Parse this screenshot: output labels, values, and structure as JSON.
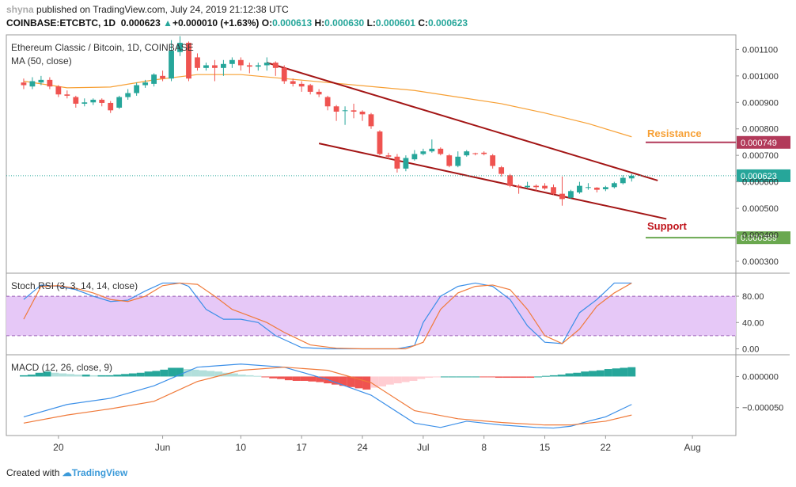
{
  "header": {
    "brand": "shyna",
    "published": " published on TradingView.com, July 24, 2019 21:12:38 UTC",
    "symbol": "COINBASE:ETCBTC, 1D",
    "last": "0.000623",
    "change_arrow": "▲",
    "change": "+0.000010 (+1.63%)",
    "o_label": "O:",
    "o": "0.000613",
    "h_label": "H:",
    "h": "0.000630",
    "l_label": "L:",
    "l": "0.000601",
    "c_label": "C:",
    "c": "0.000623"
  },
  "footer": {
    "created_with": "Created with",
    "brand": "TradingView"
  },
  "colors": {
    "up": "#26a69a",
    "down": "#ef5350",
    "ma": "#f7a035",
    "channel": "#a31515",
    "resistance_label": "#f7a035",
    "resistance_line": "#b23a5a",
    "support_label": "#c0151c",
    "support_line": "#6aa84f",
    "stoch_k": "#3b8fe8",
    "stoch_d": "#f07a3a",
    "stoch_band": "#e6c8f7",
    "current_price_bg": "#26a69a",
    "resistance_badge": "#b23a5a",
    "support_badge": "#6aa84f"
  },
  "chart_data": [
    {
      "type": "line",
      "title": "Ethereum Classic / Bitcoin, 1D, COINBASE",
      "indicator_label": "MA (50, close)",
      "ylim": [
        0.000255,
        0.001155
      ],
      "y_ticks": [
        0.0003,
        0.0004,
        0.0005,
        0.0006,
        0.0007,
        0.0008,
        0.0009,
        0.001,
        0.0011
      ],
      "y_tick_labels": [
        "0.000300",
        "0.000400",
        "0.000500",
        "0.000600",
        "0.000700",
        "0.000800",
        "0.000900",
        "0.001000",
        "0.001100"
      ],
      "x_ticks": [
        {
          "label": "20",
          "day": -11
        },
        {
          "label": "Jun",
          "day": 1
        },
        {
          "label": "10",
          "day": 10
        },
        {
          "label": "17",
          "day": 17
        },
        {
          "label": "24",
          "day": 24
        },
        {
          "label": "Jul",
          "day": 31
        },
        {
          "label": "8",
          "day": 38
        },
        {
          "label": "15",
          "day": 45
        },
        {
          "label": "22",
          "day": 52
        },
        {
          "label": "Aug",
          "day": 62
        }
      ],
      "candles": [
        {
          "d": -15,
          "o": 0.000975,
          "c": 0.000965,
          "h": 0.00099,
          "l": 0.00095
        },
        {
          "d": -14,
          "o": 0.00096,
          "c": 0.00098,
          "h": 0.000995,
          "l": 0.00095
        },
        {
          "d": -13,
          "o": 0.000975,
          "c": 0.000985,
          "h": 0.001,
          "l": 0.000965
        },
        {
          "d": -12,
          "o": 0.000985,
          "c": 0.00096,
          "h": 0.000995,
          "l": 0.00095
        },
        {
          "d": -11,
          "o": 0.00096,
          "c": 0.00093,
          "h": 0.000965,
          "l": 0.00092
        },
        {
          "d": -10,
          "o": 0.00093,
          "c": 0.000925,
          "h": 0.000945,
          "l": 0.000915
        },
        {
          "d": -9,
          "o": 0.00092,
          "c": 0.000895,
          "h": 0.000925,
          "l": 0.00088
        },
        {
          "d": -8,
          "o": 0.000895,
          "c": 0.0009,
          "h": 0.000915,
          "l": 0.000885
        },
        {
          "d": -7,
          "o": 0.0009,
          "c": 0.00091,
          "h": 0.000915,
          "l": 0.00089
        },
        {
          "d": -6,
          "o": 0.00091,
          "c": 0.000898,
          "h": 0.000915,
          "l": 0.000885
        },
        {
          "d": -5,
          "o": 0.000898,
          "c": 0.00087,
          "h": 0.000905,
          "l": 0.00086
        },
        {
          "d": -4,
          "o": 0.00088,
          "c": 0.00092,
          "h": 0.000925,
          "l": 0.000875
        },
        {
          "d": -3,
          "o": 0.00092,
          "c": 0.000935,
          "h": 0.00095,
          "l": 0.00091
        },
        {
          "d": -2,
          "o": 0.000935,
          "c": 0.000965,
          "h": 0.000975,
          "l": 0.000925
        },
        {
          "d": -1,
          "o": 0.000965,
          "c": 0.000975,
          "h": 0.000985,
          "l": 0.000955
        },
        {
          "d": 0,
          "o": 0.00097,
          "c": 0.001005,
          "h": 0.00101,
          "l": 0.00096
        },
        {
          "d": 1,
          "o": 0.001,
          "c": 0.00099,
          "h": 0.00102,
          "l": 0.00098
        },
        {
          "d": 2,
          "o": 0.00099,
          "c": 0.001095,
          "h": 0.001135,
          "l": 0.00098
        },
        {
          "d": 3,
          "o": 0.00109,
          "c": 0.001125,
          "h": 0.00115,
          "l": 0.001075
        },
        {
          "d": 4,
          "o": 0.001125,
          "c": 0.00099,
          "h": 0.00113,
          "l": 0.00098
        },
        {
          "d": 5,
          "o": 0.00107,
          "c": 0.00103,
          "h": 0.001085,
          "l": 0.00102
        },
        {
          "d": 6,
          "o": 0.00103,
          "c": 0.00104,
          "h": 0.00105,
          "l": 0.00102
        },
        {
          "d": 7,
          "o": 0.00104,
          "c": 0.00103,
          "h": 0.00106,
          "l": 0.00098
        },
        {
          "d": 8,
          "o": 0.00103,
          "c": 0.001045,
          "h": 0.00106,
          "l": 0.001
        },
        {
          "d": 9,
          "o": 0.001045,
          "c": 0.00106,
          "h": 0.00107,
          "l": 0.00103
        },
        {
          "d": 10,
          "o": 0.00106,
          "c": 0.00104,
          "h": 0.00107,
          "l": 0.00102
        },
        {
          "d": 11,
          "o": 0.00104,
          "c": 0.001035,
          "h": 0.00105,
          "l": 0.00101
        },
        {
          "d": 12,
          "o": 0.001035,
          "c": 0.00104,
          "h": 0.00105,
          "l": 0.00102
        },
        {
          "d": 13,
          "o": 0.00104,
          "c": 0.00105,
          "h": 0.00107,
          "l": 0.00102
        },
        {
          "d": 14,
          "o": 0.00105,
          "c": 0.00103,
          "h": 0.001055,
          "l": 0.001
        },
        {
          "d": 15,
          "o": 0.00103,
          "c": 0.00098,
          "h": 0.00104,
          "l": 0.00097
        },
        {
          "d": 16,
          "o": 0.00098,
          "c": 0.00097,
          "h": 0.00099,
          "l": 0.00096
        },
        {
          "d": 17,
          "o": 0.00097,
          "c": 0.00096,
          "h": 0.00098,
          "l": 0.00094
        },
        {
          "d": 18,
          "o": 0.000965,
          "c": 0.00094,
          "h": 0.00097,
          "l": 0.00093
        },
        {
          "d": 19,
          "o": 0.00094,
          "c": 0.00093,
          "h": 0.00095,
          "l": 0.00092
        },
        {
          "d": 20,
          "o": 0.00092,
          "c": 0.000885,
          "h": 0.000925,
          "l": 0.00087
        },
        {
          "d": 21,
          "o": 0.000885,
          "c": 0.000865,
          "h": 0.00089,
          "l": 0.00083
        },
        {
          "d": 22,
          "o": 0.00087,
          "c": 0.00087,
          "h": 0.000885,
          "l": 0.000815
        },
        {
          "d": 23,
          "o": 0.00087,
          "c": 0.000865,
          "h": 0.000895,
          "l": 0.00084
        },
        {
          "d": 24,
          "o": 0.000865,
          "c": 0.000855,
          "h": 0.00087,
          "l": 0.00083
        },
        {
          "d": 25,
          "o": 0.000855,
          "c": 0.00081,
          "h": 0.00086,
          "l": 0.0008
        },
        {
          "d": 26,
          "o": 0.00079,
          "c": 0.000705,
          "h": 0.000795,
          "l": 0.0007
        },
        {
          "d": 27,
          "o": 0.0007,
          "c": 0.000695,
          "h": 0.00071,
          "l": 0.000685
        },
        {
          "d": 28,
          "o": 0.000695,
          "c": 0.00065,
          "h": 0.000705,
          "l": 0.000635
        },
        {
          "d": 29,
          "o": 0.00065,
          "c": 0.00069,
          "h": 0.0007,
          "l": 0.00064
        },
        {
          "d": 30,
          "o": 0.000685,
          "c": 0.000705,
          "h": 0.00072,
          "l": 0.00068
        },
        {
          "d": 31,
          "o": 0.000705,
          "c": 0.000715,
          "h": 0.000725,
          "l": 0.0007
        },
        {
          "d": 32,
          "o": 0.000715,
          "c": 0.000725,
          "h": 0.00076,
          "l": 0.00071
        },
        {
          "d": 33,
          "o": 0.000725,
          "c": 0.000705,
          "h": 0.00073,
          "l": 0.0007
        },
        {
          "d": 34,
          "o": 0.0007,
          "c": 0.00066,
          "h": 0.000705,
          "l": 0.000655
        },
        {
          "d": 35,
          "o": 0.00066,
          "c": 0.000695,
          "h": 0.000715,
          "l": 0.000655
        },
        {
          "d": 36,
          "o": 0.0007,
          "c": 0.000715,
          "h": 0.00072,
          "l": 0.000695
        },
        {
          "d": 37,
          "o": 0.000708,
          "c": 0.000705,
          "h": 0.00071,
          "l": 0.0007
        },
        {
          "d": 38,
          "o": 0.00071,
          "c": 0.000705,
          "h": 0.000715,
          "l": 0.0007
        },
        {
          "d": 39,
          "o": 0.0007,
          "c": 0.00066,
          "h": 0.000705,
          "l": 0.00065
        },
        {
          "d": 40,
          "o": 0.000655,
          "c": 0.00063,
          "h": 0.00066,
          "l": 0.00062
        },
        {
          "d": 41,
          "o": 0.000625,
          "c": 0.000585,
          "h": 0.00063,
          "l": 0.00058
        },
        {
          "d": 42,
          "o": 0.000585,
          "c": 0.00058,
          "h": 0.00059,
          "l": 0.000555
        },
        {
          "d": 43,
          "o": 0.00058,
          "c": 0.000585,
          "h": 0.0006,
          "l": 0.000575
        },
        {
          "d": 44,
          "o": 0.000585,
          "c": 0.00058,
          "h": 0.00059,
          "l": 0.000565
        },
        {
          "d": 45,
          "o": 0.000585,
          "c": 0.000575,
          "h": 0.000595,
          "l": 0.00057
        },
        {
          "d": 46,
          "o": 0.00058,
          "c": 0.000555,
          "h": 0.00059,
          "l": 0.00055
        },
        {
          "d": 47,
          "o": 0.000555,
          "c": 0.000535,
          "h": 0.00062,
          "l": 0.00051
        },
        {
          "d": 48,
          "o": 0.00054,
          "c": 0.000565,
          "h": 0.00057,
          "l": 0.000535
        },
        {
          "d": 49,
          "o": 0.00056,
          "c": 0.000585,
          "h": 0.0006,
          "l": 0.000555
        },
        {
          "d": 50,
          "o": 0.00058,
          "c": 0.00058,
          "h": 0.000595,
          "l": 0.00057
        },
        {
          "d": 51,
          "o": 0.000578,
          "c": 0.00057,
          "h": 0.00058,
          "l": 0.00056
        },
        {
          "d": 52,
          "o": 0.000572,
          "c": 0.00058,
          "h": 0.000585,
          "l": 0.000565
        },
        {
          "d": 53,
          "o": 0.00058,
          "c": 0.000595,
          "h": 0.0006,
          "l": 0.000575
        },
        {
          "d": 54,
          "o": 0.000595,
          "c": 0.000615,
          "h": 0.000625,
          "l": 0.00059
        },
        {
          "d": 55,
          "o": 0.000613,
          "c": 0.000623,
          "h": 0.00063,
          "l": 0.000601
        }
      ],
      "ma50": [
        {
          "d": -15,
          "v": 0.00098
        },
        {
          "d": -10,
          "v": 0.000955
        },
        {
          "d": -5,
          "v": 0.000958
        },
        {
          "d": 0,
          "v": 0.000985
        },
        {
          "d": 5,
          "v": 0.001005
        },
        {
          "d": 10,
          "v": 0.001005
        },
        {
          "d": 15,
          "v": 0.00099
        },
        {
          "d": 20,
          "v": 0.000975
        },
        {
          "d": 25,
          "v": 0.00096
        },
        {
          "d": 30,
          "v": 0.000945
        },
        {
          "d": 35,
          "v": 0.00092
        },
        {
          "d": 40,
          "v": 0.000895
        },
        {
          "d": 45,
          "v": 0.00086
        },
        {
          "d": 50,
          "v": 0.00082
        },
        {
          "d": 55,
          "v": 0.00077
        }
      ],
      "channel_upper": [
        {
          "d": 13,
          "v": 0.00105
        },
        {
          "d": 58,
          "v": 0.000605
        }
      ],
      "channel_lower": [
        {
          "d": 19,
          "v": 0.000745
        },
        {
          "d": 59,
          "v": 0.00046
        }
      ],
      "current_price": 0.000623,
      "current_price_label": "0.000623",
      "resistance": {
        "label": "Resistance",
        "value": 0.000749,
        "value_label": "0.000749"
      },
      "support": {
        "label": "Support",
        "value": 0.000389,
        "value_label": "0.000389"
      }
    },
    {
      "type": "line",
      "indicator_label": "Stoch RSI (3, 3, 14, 14, close)",
      "ylim": [
        -9,
        115
      ],
      "y_ticks": [
        0,
        40,
        80
      ],
      "y_tick_labels": [
        "0.00",
        "40.00",
        "80.00"
      ],
      "band": [
        20,
        80
      ],
      "series": [
        {
          "name": "",
          "x": [
            -15,
            -13,
            -11,
            -9,
            -7,
            -5,
            -3,
            -1,
            1,
            3,
            4,
            6,
            8,
            10,
            12,
            14,
            17,
            20,
            23,
            26,
            28,
            30,
            31,
            33,
            35,
            37,
            39,
            41,
            43,
            45,
            47,
            49,
            51,
            53,
            55
          ],
          "values": [
            75,
            97,
            95,
            90,
            80,
            72,
            74,
            88,
            100,
            100,
            95,
            60,
            45,
            45,
            40,
            20,
            2,
            0,
            0,
            0,
            0,
            5,
            40,
            80,
            95,
            100,
            95,
            75,
            35,
            10,
            8,
            55,
            75,
            100,
            100
          ]
        },
        {
          "name": "",
          "x": [
            -15,
            -13,
            -11,
            -9,
            -7,
            -5,
            -3,
            -1,
            1,
            3,
            5,
            7,
            9,
            11,
            13,
            15,
            18,
            21,
            24,
            27,
            29,
            31,
            33,
            35,
            37,
            39,
            41,
            43,
            45,
            47,
            49,
            51,
            53,
            55
          ],
          "values": [
            45,
            95,
            96,
            92,
            85,
            75,
            72,
            80,
            96,
            100,
            98,
            80,
            60,
            50,
            40,
            25,
            6,
            1,
            0,
            0,
            0,
            10,
            60,
            85,
            95,
            97,
            90,
            60,
            20,
            8,
            30,
            65,
            85,
            100
          ]
        }
      ]
    },
    {
      "type": "bar",
      "indicator_label": "MACD (12, 26, close, 9)",
      "ylim": [
        -9.5e-05,
        3.5e-05
      ],
      "y_ticks": [
        -5e-05,
        0
      ],
      "y_tick_labels": [
        "−0.000050",
        "0.000000"
      ],
      "histogram": [
        2,
        3,
        6,
        8,
        6,
        5,
        4,
        3,
        3,
        2,
        2,
        2,
        3,
        4,
        5,
        6,
        8,
        9,
        11,
        14,
        14,
        12,
        11,
        10,
        9,
        8,
        6,
        5,
        3,
        2,
        1,
        -1,
        -3,
        -4,
        -6,
        -7,
        -7,
        -8,
        -9,
        -11,
        -13,
        -15,
        -17,
        -19,
        -21,
        -18,
        -16,
        -13,
        -11,
        -9,
        -7,
        -4,
        -2,
        -1,
        0,
        0,
        0,
        0,
        0,
        -1,
        -1,
        -2,
        -2,
        -2,
        -2,
        -2,
        0,
        1,
        2,
        3,
        5,
        6,
        8,
        9,
        10,
        12,
        13,
        14,
        15
      ],
      "histogram_start_day": -15,
      "histogram_unit": 1e-06,
      "series": [
        {
          "name": "",
          "x": [
            -15,
            -10,
            -5,
            0,
            5,
            10,
            15,
            20,
            25,
            30,
            33,
            36,
            40,
            44,
            46,
            48,
            50,
            52,
            55
          ],
          "values": [
            -6.5e-05,
            -4.5e-05,
            -3.5e-05,
            -1.5e-05,
            1.5e-05,
            2e-05,
            1.5e-05,
            -5e-06,
            -3e-05,
            -7.5e-05,
            -8.2e-05,
            -7.2e-05,
            -7.8e-05,
            -8.2e-05,
            -8.3e-05,
            -8e-05,
            -7.2e-05,
            -6.5e-05,
            -4.5e-05
          ]
        },
        {
          "name": "",
          "x": [
            -15,
            -10,
            -5,
            0,
            5,
            10,
            15,
            20,
            25,
            30,
            35,
            40,
            45,
            48,
            50,
            52,
            55
          ],
          "values": [
            -7.5e-05,
            -6.2e-05,
            -5.2e-05,
            -4e-05,
            -8e-06,
            1e-05,
            1.5e-05,
            1e-05,
            -1e-05,
            -5.5e-05,
            -6.8e-05,
            -7.4e-05,
            -7.8e-05,
            -7.8e-05,
            -7.5e-05,
            -7.2e-05,
            -6.2e-05
          ]
        }
      ]
    }
  ]
}
